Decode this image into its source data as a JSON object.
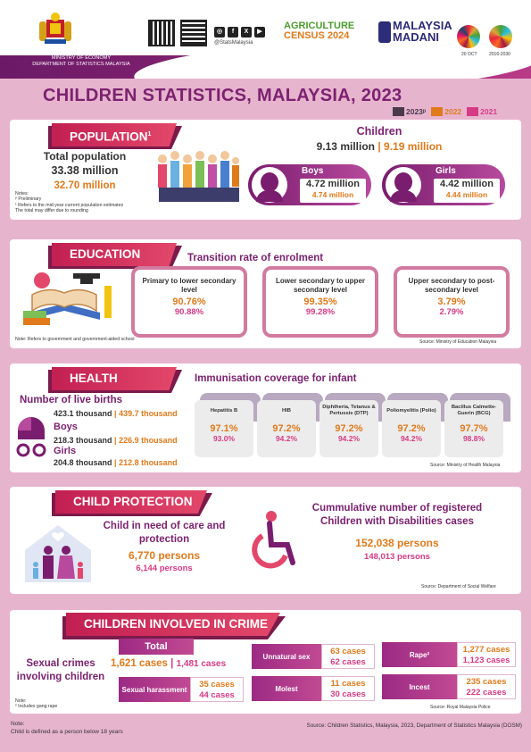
{
  "header": {
    "ministry_line1": "MINISTRY OF ECONOMY",
    "ministry_line2": "DEPARTMENT OF STATISTICS MALAYSIA",
    "handle": "@StatsMalaysia",
    "agri_line1": "AGRICULTURE",
    "agri_line2": "CENSUS 2024",
    "madani_line1": "MALAYSIA",
    "madani_line2": "MADANI",
    "sdg_date1": "20 OCT",
    "sdg_date2": "2016-2030",
    "social_icons": [
      "instagram-icon",
      "facebook-icon",
      "x-icon",
      "youtube-icon"
    ]
  },
  "title": "CHILDREN STATISTICS, MALAYSIA, 2023",
  "legend": [
    {
      "label": "2023ᵖ",
      "color": "#4a3a4a"
    },
    {
      "label": "2022",
      "color": "#e07a1b"
    },
    {
      "label": "2021",
      "color": "#d63a85"
    }
  ],
  "population": {
    "heading": "POPULATION",
    "heading_sup": "1",
    "total_label": "Total population",
    "total_2023": "33.38 million",
    "total_2022": "32.70 million",
    "children_label": "Children",
    "children_2023": "9.13 million",
    "children_2022": "9.19 million",
    "boys_label": "Boys",
    "boys_2023": "4.72 million",
    "boys_2022": "4.74 million",
    "girls_label": "Girls",
    "girls_2023": "4.42 million",
    "girls_2022": "4.44 million",
    "notes": [
      "Notes:",
      "ᵖ Preliminary",
      "¹ Refers to the mid-year current population estimates",
      "The total may differ due to rounding"
    ]
  },
  "education": {
    "heading": "EDUCATION",
    "subtitle": "Transition rate of enrolment",
    "boxes": [
      {
        "label": "Primary to lower secondary level",
        "v2023": "90.76%",
        "v2022": "90.88%"
      },
      {
        "label": "Lower secondary to upper secondary level",
        "v2023": "99.35%",
        "v2022": "99.28%"
      },
      {
        "label": "Upper secondary to post-secondary level",
        "v2023": "3.79%",
        "v2022": "2.79%"
      }
    ],
    "note": "Note: Refers to government and government-aided school",
    "source": "Source: Ministry of Education Malaysia"
  },
  "health": {
    "heading": "HEALTH",
    "live_births_label": "Number of live births",
    "live_2023": "423.1 thousand",
    "live_2022": "439.7 thousand",
    "boys_label": "Boys",
    "boys_2023": "218.3 thousand",
    "boys_2022": "226.9 thousand",
    "girls_label": "Girls",
    "girls_2023": "204.8 thousand",
    "girls_2022": "212.8 thousand",
    "imm_title": "Immunisation coverage for infant",
    "vaccines": [
      {
        "label": "Hepatitis B",
        "v2023": "97.1%",
        "v2022": "93.0%"
      },
      {
        "label": "HIB",
        "v2023": "97.2%",
        "v2022": "94.2%"
      },
      {
        "label": "Diphtheria, Tetanus & Pertussis (DTP)",
        "v2023": "97.2%",
        "v2022": "94.2%"
      },
      {
        "label": "Poliomyelitis (Polio)",
        "v2023": "97.2%",
        "v2022": "94.2%"
      },
      {
        "label": "Bacillus Calmette-Guerin (BCG)",
        "v2023": "97.7%",
        "v2022": "98.8%"
      }
    ],
    "source": "Source: Ministry of Health Malaysia"
  },
  "protection": {
    "heading": "CHILD PROTECTION",
    "care_label": "Child in need of care and protection",
    "care_2023": "6,770 persons",
    "care_2022": "6,144 persons",
    "disab_label": "Cummulative number of registered Children with Disabilities cases",
    "disab_2023": "152,038 persons",
    "disab_2022": "148,013 persons",
    "source": "Source: Department of Social Welfare"
  },
  "crime": {
    "heading": "CHILDREN INVOLVED IN CRIME",
    "sexual_label": "Sexual crimes involving children",
    "total_label": "Total",
    "total_2023": "1,621 cases",
    "total_2022": "1,481 cases",
    "items": [
      {
        "label": "Sexual harassment",
        "v2023": "35 cases",
        "v2022": "44 cases"
      },
      {
        "label": "Unnatural sex",
        "v2023": "63 cases",
        "v2022": "62 cases"
      },
      {
        "label": "Molest",
        "v2023": "11 cases",
        "v2022": "30 cases"
      },
      {
        "label": "Rape²",
        "v2023": "1,277 cases",
        "v2022": "1,123 cases"
      },
      {
        "label": "Incest",
        "v2023": "235 cases",
        "v2022": "222 cases"
      }
    ],
    "note": [
      "Note:",
      "² Includes gang rape"
    ],
    "source": "Source: Royal Malaysia Police"
  },
  "footer": {
    "note_label": "Note:",
    "note_text": "Child is defined as a person below 18 years",
    "source": "Source: Children Statistics, Malaysia, 2023, Department of Statistics Malaysia (DOSM)"
  }
}
